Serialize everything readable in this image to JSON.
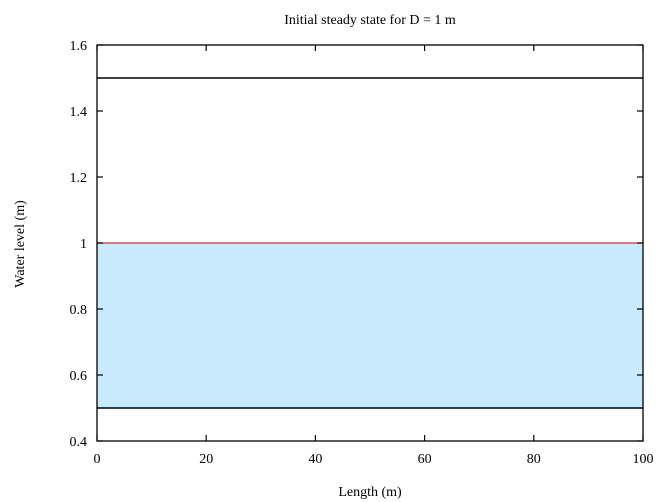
{
  "chart_data": {
    "type": "area",
    "title": "Initial steady state for D = 1 m",
    "xlabel": "Length (m)",
    "ylabel": "Water level (m)",
    "xlim": [
      0,
      100
    ],
    "ylim": [
      0.4,
      1.6
    ],
    "x_ticks": [
      0,
      20,
      40,
      60,
      80,
      100
    ],
    "y_ticks": [
      0.4,
      0.6,
      0.8,
      1.0,
      1.2,
      1.4,
      1.6
    ],
    "x_tick_labels": [
      "0",
      "20",
      "40",
      "60",
      "80",
      "100"
    ],
    "y_tick_labels": [
      "0.4",
      "0.6",
      "0.8",
      "1",
      "1.2",
      "1.4",
      "1.6"
    ],
    "grid": false,
    "series": [
      {
        "x": [
          0,
          100
        ],
        "values": [
          1.0,
          1.0
        ],
        "fill_to": 0.5,
        "line_color": "#cc3333",
        "fill_color": "#c8eafc"
      }
    ],
    "reference_lines": [
      {
        "y": 1.5,
        "color": "#000000"
      },
      {
        "y": 0.5,
        "color": "#000000"
      }
    ]
  }
}
